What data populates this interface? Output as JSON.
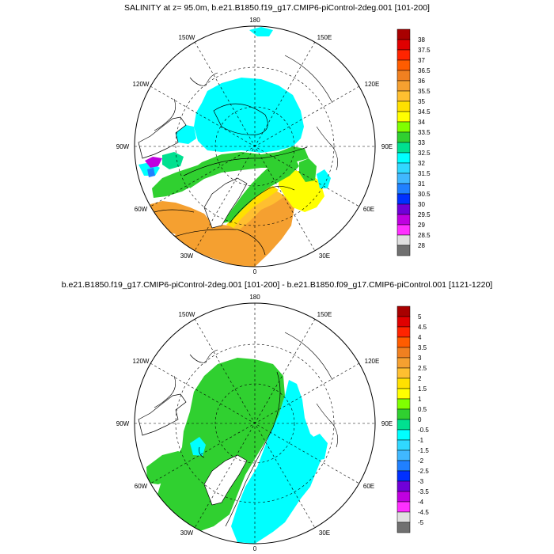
{
  "panels": [
    {
      "title": "SALINITY at z=  95.0m, b.e21.B1850.f19_g17.CMIP6-piControl-2deg.001 [101-200]",
      "lon_labels": {
        "top": "180",
        "top_left": "150W",
        "top_right": "150E",
        "upper_left": "120W",
        "upper_right": "120E",
        "left": "90W",
        "right": "90E",
        "lower_left": "60W",
        "lower_right": "60E",
        "bottom_left": "30W",
        "bottom_right": "30E",
        "bottom": "0"
      },
      "colorbar": {
        "labels": [
          "38",
          "37.5",
          "37",
          "36.5",
          "36",
          "35.5",
          "35",
          "34.5",
          "34",
          "33.5",
          "33",
          "32.5",
          "32",
          "31.5",
          "31",
          "30.5",
          "30",
          "29.5",
          "29",
          "28.5",
          "28"
        ],
        "colors": [
          "#a80000",
          "#e00000",
          "#ff2400",
          "#ff5c00",
          "#f08020",
          "#f5a030",
          "#ffbf30",
          "#ffe000",
          "#ffff00",
          "#80ff00",
          "#30d030",
          "#00e090",
          "#00ffff",
          "#30d8ff",
          "#40b8ff",
          "#2080ff",
          "#0030ff",
          "#7000d8",
          "#c000e0",
          "#ff30ff",
          "#e0e0e0",
          "#707070"
        ]
      }
    },
    {
      "title": "b.e21.B1850.f19_g17.CMIP6-piControl-2deg.001 [101-200] - b.e21.B1850.f09_g17.CMIP6-piControl.001 [1121-1220]",
      "lon_labels": {
        "top": "180",
        "top_left": "150W",
        "top_right": "150E",
        "upper_left": "120W",
        "upper_right": "120E",
        "left": "90W",
        "right": "90E",
        "lower_left": "60W",
        "lower_right": "60E",
        "bottom_left": "30W",
        "bottom_right": "30E",
        "bottom": "0"
      },
      "colorbar": {
        "labels": [
          "5",
          "4.5",
          "4",
          "3.5",
          "3",
          "2.5",
          "2",
          "1.5",
          "1",
          "0.5",
          "0",
          "-0.5",
          "-1",
          "-1.5",
          "-2",
          "-2.5",
          "-3",
          "-3.5",
          "-4",
          "-4.5",
          "-5"
        ],
        "colors": [
          "#a80000",
          "#e00000",
          "#ff2400",
          "#ff5c00",
          "#f08020",
          "#f5a030",
          "#ffbf30",
          "#ffe000",
          "#ffff00",
          "#80ff00",
          "#30d030",
          "#00e090",
          "#00ffff",
          "#30d8ff",
          "#40b8ff",
          "#2080ff",
          "#0030ff",
          "#7000d8",
          "#c000e0",
          "#ff30ff",
          "#e0e0e0",
          "#707070"
        ]
      }
    }
  ]
}
